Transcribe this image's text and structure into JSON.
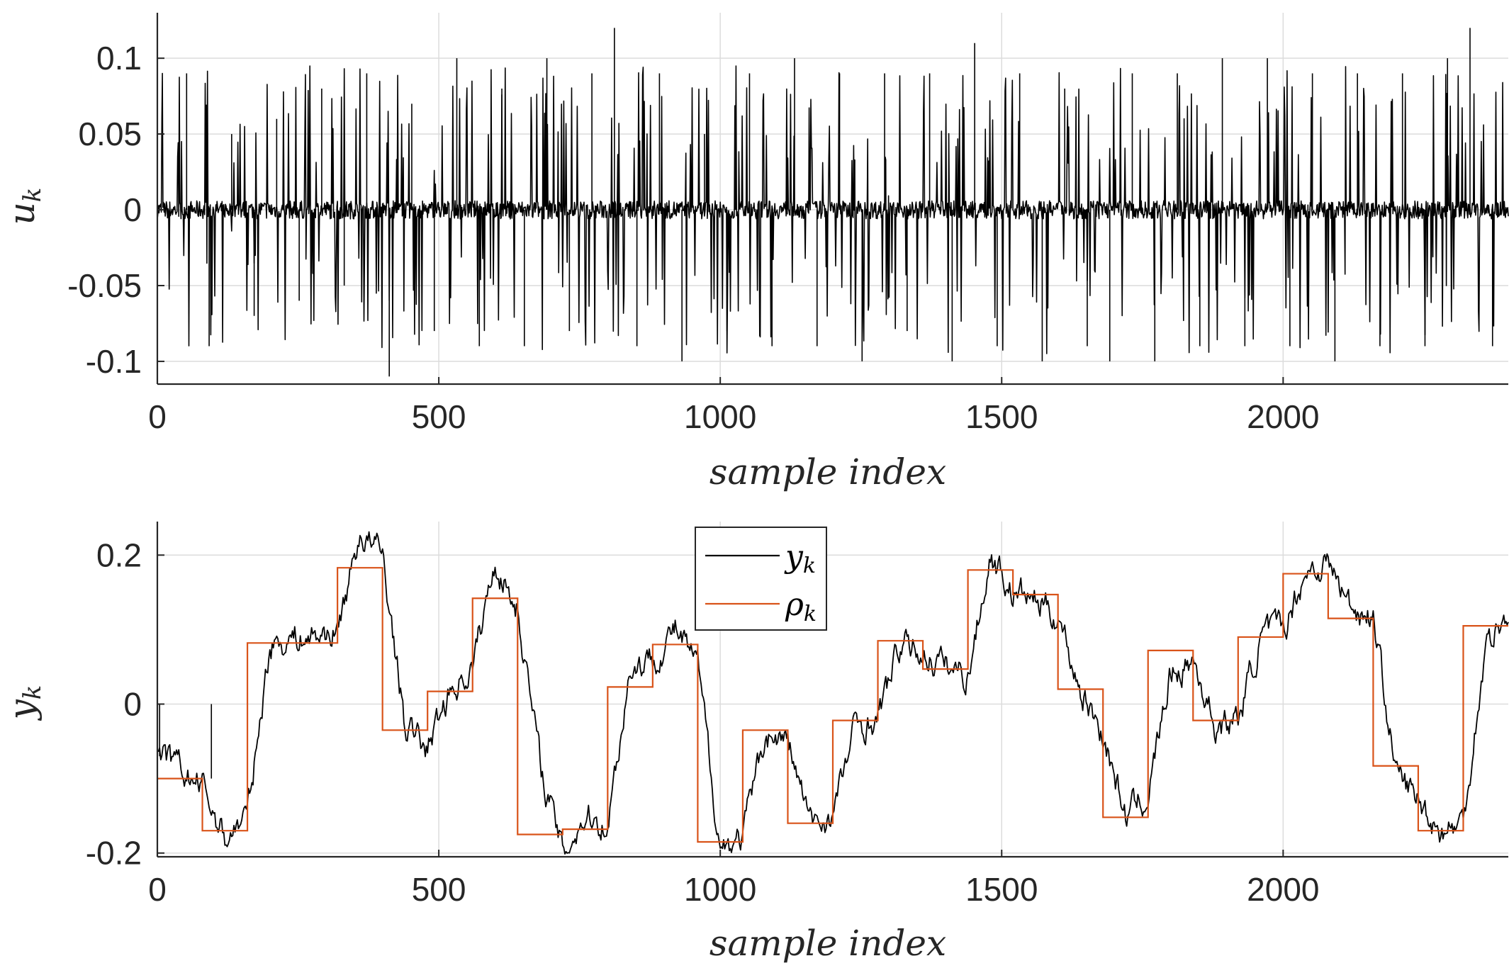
{
  "chart_data": [
    {
      "type": "line",
      "panel": "top",
      "xlabel": "sample index",
      "ylabel": "u_k",
      "ylabel_base": "u",
      "ylabel_sub": "k",
      "xlim": [
        0,
        2400
      ],
      "ylim": [
        -0.115,
        0.13
      ],
      "xticks": [
        0,
        500,
        1000,
        1500,
        2000
      ],
      "xtick_labels": [
        "0",
        "500",
        "1000",
        "1500",
        "2000"
      ],
      "yticks": [
        0.1,
        0.05,
        0,
        -0.05,
        -0.1
      ],
      "ytick_labels": [
        "0.1",
        "0.05",
        "0",
        "-0.05",
        "-0.1"
      ],
      "grid": true,
      "series": [
        {
          "name": "u_k",
          "color": "#000000",
          "description": "zero-mean excitation signal with sharp spikes up to about ±0.1 (approximated)",
          "x": [
            0,
            40,
            80,
            120,
            160,
            200,
            240,
            280,
            320,
            360,
            400,
            440,
            480,
            520,
            560,
            600,
            640,
            680,
            720,
            760,
            800,
            840,
            880,
            920,
            960,
            1000,
            1040,
            1080,
            1120,
            1160,
            1200,
            1240,
            1280,
            1320,
            1360,
            1400,
            1440,
            1480,
            1520,
            1560,
            1600,
            1640,
            1680,
            1720,
            1760,
            1800,
            1840,
            1880,
            1920,
            1960,
            2000,
            2040,
            2080,
            2120,
            2160,
            2200,
            2240,
            2280,
            2320,
            2360,
            2400
          ],
          "values": [
            0.0,
            0.09,
            -0.09,
            0.05,
            -0.07,
            0.06,
            -0.06,
            0.08,
            -0.05,
            0.09,
            -0.11,
            0.07,
            -0.08,
            0.1,
            -0.09,
            0.08,
            -0.09,
            0.1,
            -0.08,
            0.09,
            0.12,
            -0.09,
            0.09,
            -0.1,
            0.05,
            -0.08,
            0.09,
            -0.09,
            0.1,
            -0.09,
            0.09,
            -0.1,
            0.09,
            -0.08,
            0.09,
            -0.1,
            0.11,
            -0.09,
            0.09,
            -0.1,
            0.08,
            -0.09,
            -0.1,
            0.09,
            -0.1,
            0.09,
            -0.09,
            0.1,
            -0.09,
            0.1,
            -0.09,
            0.09,
            -0.1,
            0.09,
            -0.09,
            0.09,
            -0.09,
            0.1,
            0.12,
            -0.09,
            0.0
          ]
        }
      ]
    },
    {
      "type": "line",
      "panel": "bottom",
      "xlabel": "sample index",
      "ylabel": "y_k",
      "ylabel_base": "y",
      "ylabel_sub": "k",
      "xlim": [
        0,
        2400
      ],
      "ylim": [
        -0.205,
        0.245
      ],
      "xticks": [
        0,
        500,
        1000,
        1500,
        2000
      ],
      "xtick_labels": [
        "0",
        "500",
        "1000",
        "1500",
        "2000"
      ],
      "yticks": [
        0.2,
        0,
        -0.2
      ],
      "ytick_labels": [
        "0.2",
        "0",
        "-0.2"
      ],
      "grid": true,
      "legend_position": "top-center",
      "series": [
        {
          "name": "y_k",
          "name_base": "y",
          "name_sub": "k",
          "color": "#000000",
          "description": "system output tracking the reference with noise (approximated)",
          "x": [
            0,
            40,
            80,
            120,
            160,
            200,
            240,
            280,
            320,
            360,
            400,
            440,
            480,
            520,
            560,
            600,
            640,
            680,
            720,
            760,
            800,
            840,
            880,
            920,
            960,
            1000,
            1040,
            1080,
            1120,
            1160,
            1200,
            1240,
            1280,
            1320,
            1360,
            1400,
            1440,
            1480,
            1520,
            1560,
            1600,
            1640,
            1680,
            1720,
            1760,
            1800,
            1840,
            1880,
            1920,
            1960,
            2000,
            2040,
            2080,
            2120,
            2160,
            2200,
            2240,
            2280,
            2320,
            2360,
            2400
          ],
          "values": [
            -0.07,
            -0.09,
            -0.11,
            -0.18,
            -0.15,
            0.08,
            0.09,
            0.09,
            0.1,
            0.23,
            0.2,
            -0.03,
            -0.06,
            0.02,
            0.05,
            0.19,
            0.13,
            -0.08,
            -0.2,
            -0.15,
            -0.16,
            0.05,
            0.06,
            0.1,
            0.05,
            -0.19,
            -0.18,
            -0.04,
            -0.05,
            -0.16,
            -0.15,
            -0.03,
            -0.02,
            0.08,
            0.07,
            0.05,
            0.04,
            0.2,
            0.15,
            0.14,
            0.12,
            0.02,
            -0.04,
            -0.15,
            -0.12,
            0.04,
            0.06,
            -0.03,
            -0.02,
            0.09,
            0.1,
            0.18,
            0.19,
            0.13,
            0.12,
            -0.09,
            -0.13,
            -0.17,
            -0.16,
            0.08,
            0.12
          ]
        },
        {
          "name": "rho_k",
          "name_base": "ρ",
          "name_sub": "k",
          "color": "#D95319",
          "step": true,
          "description": "piecewise-constant reference, changes every 80 samples",
          "x": [
            0,
            80,
            160,
            240,
            320,
            400,
            480,
            560,
            640,
            720,
            800,
            880,
            960,
            1040,
            1120,
            1200,
            1280,
            1360,
            1440,
            1520,
            1600,
            1680,
            1760,
            1840,
            1920,
            2000,
            2080,
            2160,
            2240,
            2320,
            2400
          ],
          "values": [
            -0.1,
            -0.17,
            0.082,
            0.082,
            0.183,
            -0.035,
            0.017,
            0.142,
            -0.175,
            -0.168,
            0.023,
            0.08,
            -0.185,
            -0.035,
            -0.16,
            -0.022,
            0.085,
            0.047,
            0.18,
            0.147,
            0.02,
            -0.152,
            0.072,
            -0.022,
            0.09,
            0.175,
            0.115,
            -0.083,
            -0.17,
            0.105,
            0.105
          ]
        }
      ]
    }
  ]
}
